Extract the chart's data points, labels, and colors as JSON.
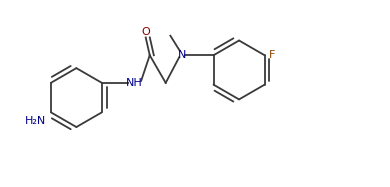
{
  "bg_color": "#ffffff",
  "line_color": "#3a3a3a",
  "color_N": "#00008b",
  "color_O": "#8b0000",
  "color_F": "#8b4500",
  "color_NH2": "#00008b",
  "figsize": [
    3.9,
    1.87
  ],
  "dpi": 100,
  "lw": 1.3,
  "ring_r": 0.72,
  "xlim": [
    0,
    9.5
  ],
  "ylim": [
    0,
    4.5
  ]
}
